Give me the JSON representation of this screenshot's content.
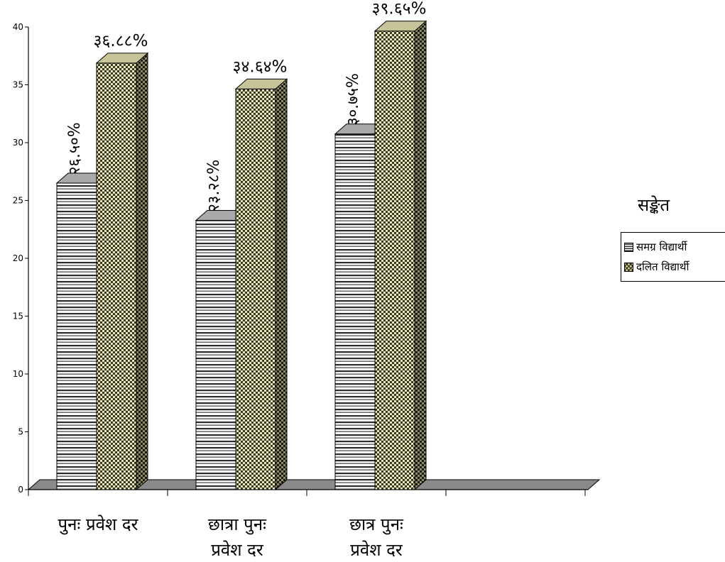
{
  "chart_data": {
    "type": "bar",
    "style": "3d-clustered",
    "categories": [
      [
        "पुनः प्रवेश दर"
      ],
      [
        "छात्रा पुनः",
        "प्रवेश दर"
      ],
      [
        "छात्र पुनः",
        "प्रवेश दर"
      ]
    ],
    "series": [
      {
        "name": "समग्र विद्यार्थी",
        "values": [
          26.5,
          23.28,
          30.75
        ],
        "data_labels": [
          "२६.५०%",
          "२३.२८%",
          "३०.७५%"
        ],
        "fill": "horizontal-stripes"
      },
      {
        "name": "दलित विद्यार्थी",
        "values": [
          36.88,
          34.64,
          39.65
        ],
        "data_labels": [
          "३६.८८%",
          "३४.६४%",
          "३९.६५%"
        ],
        "fill": "checkered"
      }
    ],
    "y_ticks": [
      "0",
      "5",
      "10",
      "15",
      "20",
      "25",
      "30",
      "35",
      "40"
    ],
    "ylim": [
      0,
      40
    ],
    "legend_title": "सङ्केत",
    "legend_position": "right",
    "grid": false,
    "colors": {
      "overall_stripe": "#2b2b2b",
      "dalit_light": "#d8d5a4",
      "dalit_dark": "#3a3a20",
      "floor": "#8a8a8a"
    }
  }
}
